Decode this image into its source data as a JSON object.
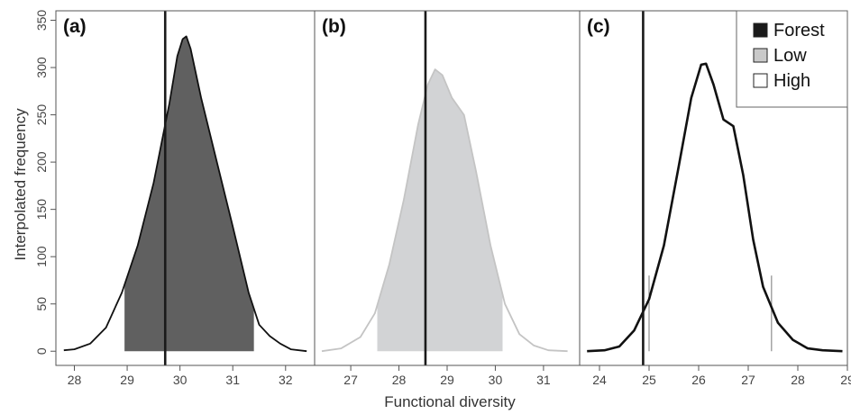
{
  "chart_data": {
    "type": "area",
    "ylabel": "Interpolated frequency",
    "xlabel": "Functional diversity",
    "ylim": [
      -15,
      360
    ],
    "yticks": [
      0,
      50,
      100,
      150,
      200,
      250,
      300,
      350
    ],
    "legend": {
      "placement": "top-right",
      "entries": [
        {
          "label": "Forest",
          "color": "#1a1a1a"
        },
        {
          "label": "Low",
          "color": "#c9c9c9"
        },
        {
          "label": "High",
          "color": "#ffffff"
        }
      ]
    },
    "panels": [
      {
        "label": "(a)",
        "xlim": [
          27.65,
          32.55
        ],
        "xticks": [
          28,
          29,
          30,
          31,
          32
        ],
        "line_color": "#111111",
        "fill_color": "#606060",
        "fill_range": [
          28.95,
          31.4
        ],
        "observed": 29.72,
        "x": [
          27.8,
          28.0,
          28.3,
          28.6,
          28.9,
          29.2,
          29.5,
          29.8,
          29.95,
          30.05,
          30.12,
          30.2,
          30.4,
          30.7,
          31.0,
          31.3,
          31.5,
          31.7,
          31.9,
          32.1,
          32.4
        ],
        "y": [
          1,
          2,
          8,
          25,
          62,
          112,
          178,
          262,
          312,
          330,
          333,
          320,
          268,
          200,
          132,
          62,
          28,
          16,
          8,
          2,
          0
        ]
      },
      {
        "label": "(b)",
        "xlim": [
          26.25,
          31.75
        ],
        "xticks": [
          27,
          28,
          29,
          30,
          31
        ],
        "line_color": "#c4c4c4",
        "fill_color": "#d2d3d5",
        "fill_range": [
          27.55,
          30.15
        ],
        "observed": 28.55,
        "x": [
          26.4,
          26.8,
          27.2,
          27.5,
          27.8,
          28.1,
          28.4,
          28.6,
          28.75,
          28.9,
          29.1,
          29.35,
          29.6,
          29.9,
          30.2,
          30.5,
          30.8,
          31.1,
          31.5
        ],
        "y": [
          0,
          3,
          15,
          40,
          92,
          160,
          240,
          282,
          298,
          292,
          268,
          250,
          190,
          112,
          50,
          18,
          6,
          1,
          0
        ]
      },
      {
        "label": "(c)",
        "xlim": [
          23.6,
          29.0
        ],
        "xticks": [
          24,
          25,
          26,
          27,
          28,
          29
        ],
        "line_color": "#111111",
        "fill_color": "#ffffff",
        "fill_range": [
          25.0,
          27.47
        ],
        "observed": 24.88,
        "x": [
          23.75,
          24.1,
          24.4,
          24.7,
          25.0,
          25.3,
          25.6,
          25.85,
          26.05,
          26.15,
          26.3,
          26.5,
          26.7,
          26.9,
          27.1,
          27.3,
          27.6,
          27.9,
          28.2,
          28.5,
          28.9
        ],
        "y": [
          0,
          1,
          5,
          22,
          55,
          112,
          196,
          268,
          303,
          304,
          282,
          245,
          238,
          186,
          118,
          68,
          30,
          12,
          3,
          1,
          0
        ]
      }
    ]
  }
}
